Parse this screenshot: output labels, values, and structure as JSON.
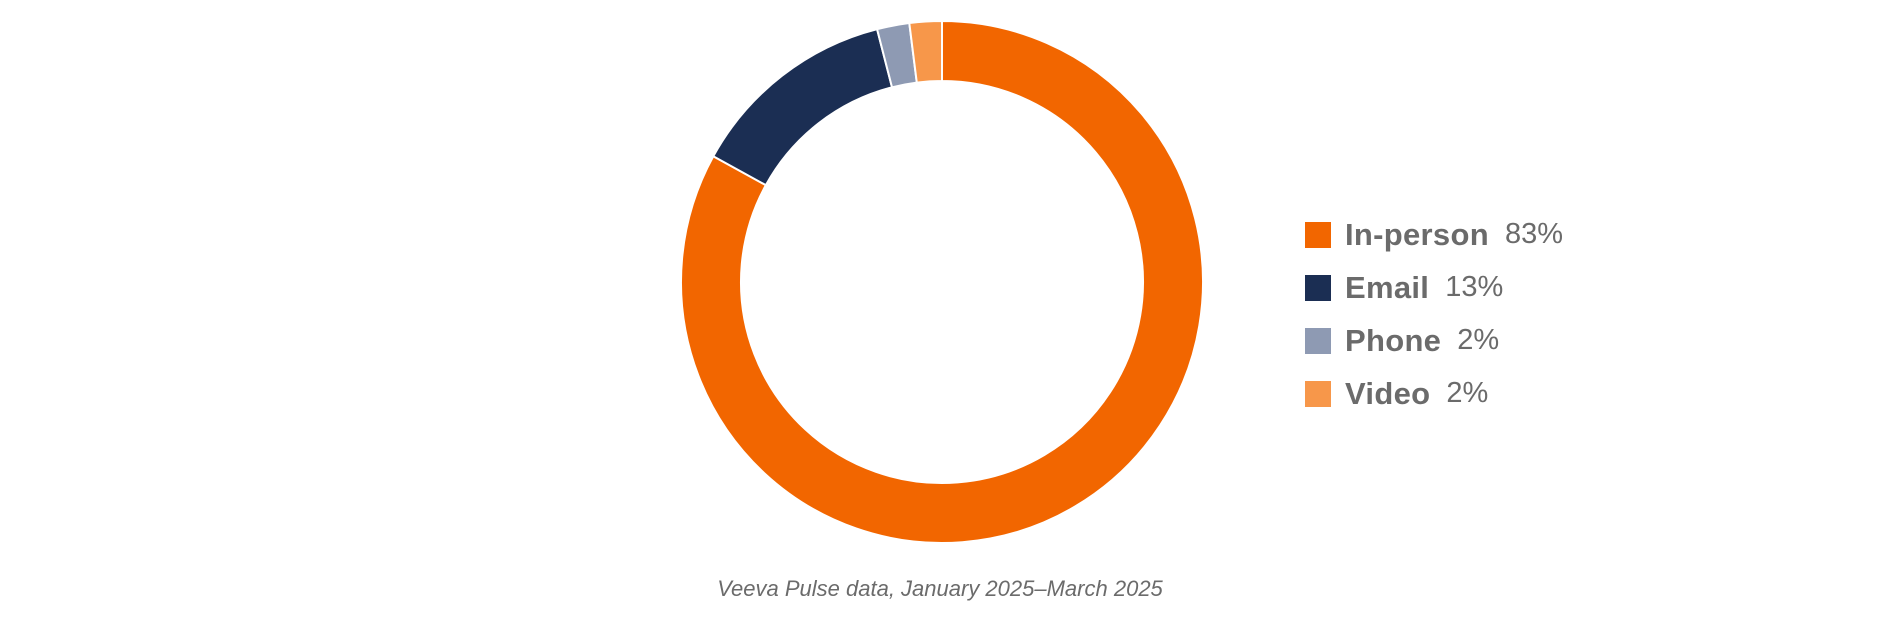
{
  "chart_data": {
    "type": "pie",
    "categories": [
      "In-person",
      "Email",
      "Phone",
      "Video"
    ],
    "values": [
      83,
      13,
      2,
      2
    ],
    "value_labels": [
      "83%",
      "13%",
      "2%",
      "2%"
    ],
    "colors": [
      "#f26600",
      "#1b2e53",
      "#8e9ab3",
      "#f7974a"
    ],
    "donut": true,
    "legend_position": "right",
    "start_angle": "top",
    "direction": "clockwise"
  },
  "legend": [
    {
      "label": "In-person",
      "value": "83%"
    },
    {
      "label": "Email",
      "value": "13%"
    },
    {
      "label": "Phone",
      "value": "2%"
    },
    {
      "label": "Video",
      "value": "2%"
    }
  ],
  "source": "Veeva Pulse data, January 2025–March 2025"
}
